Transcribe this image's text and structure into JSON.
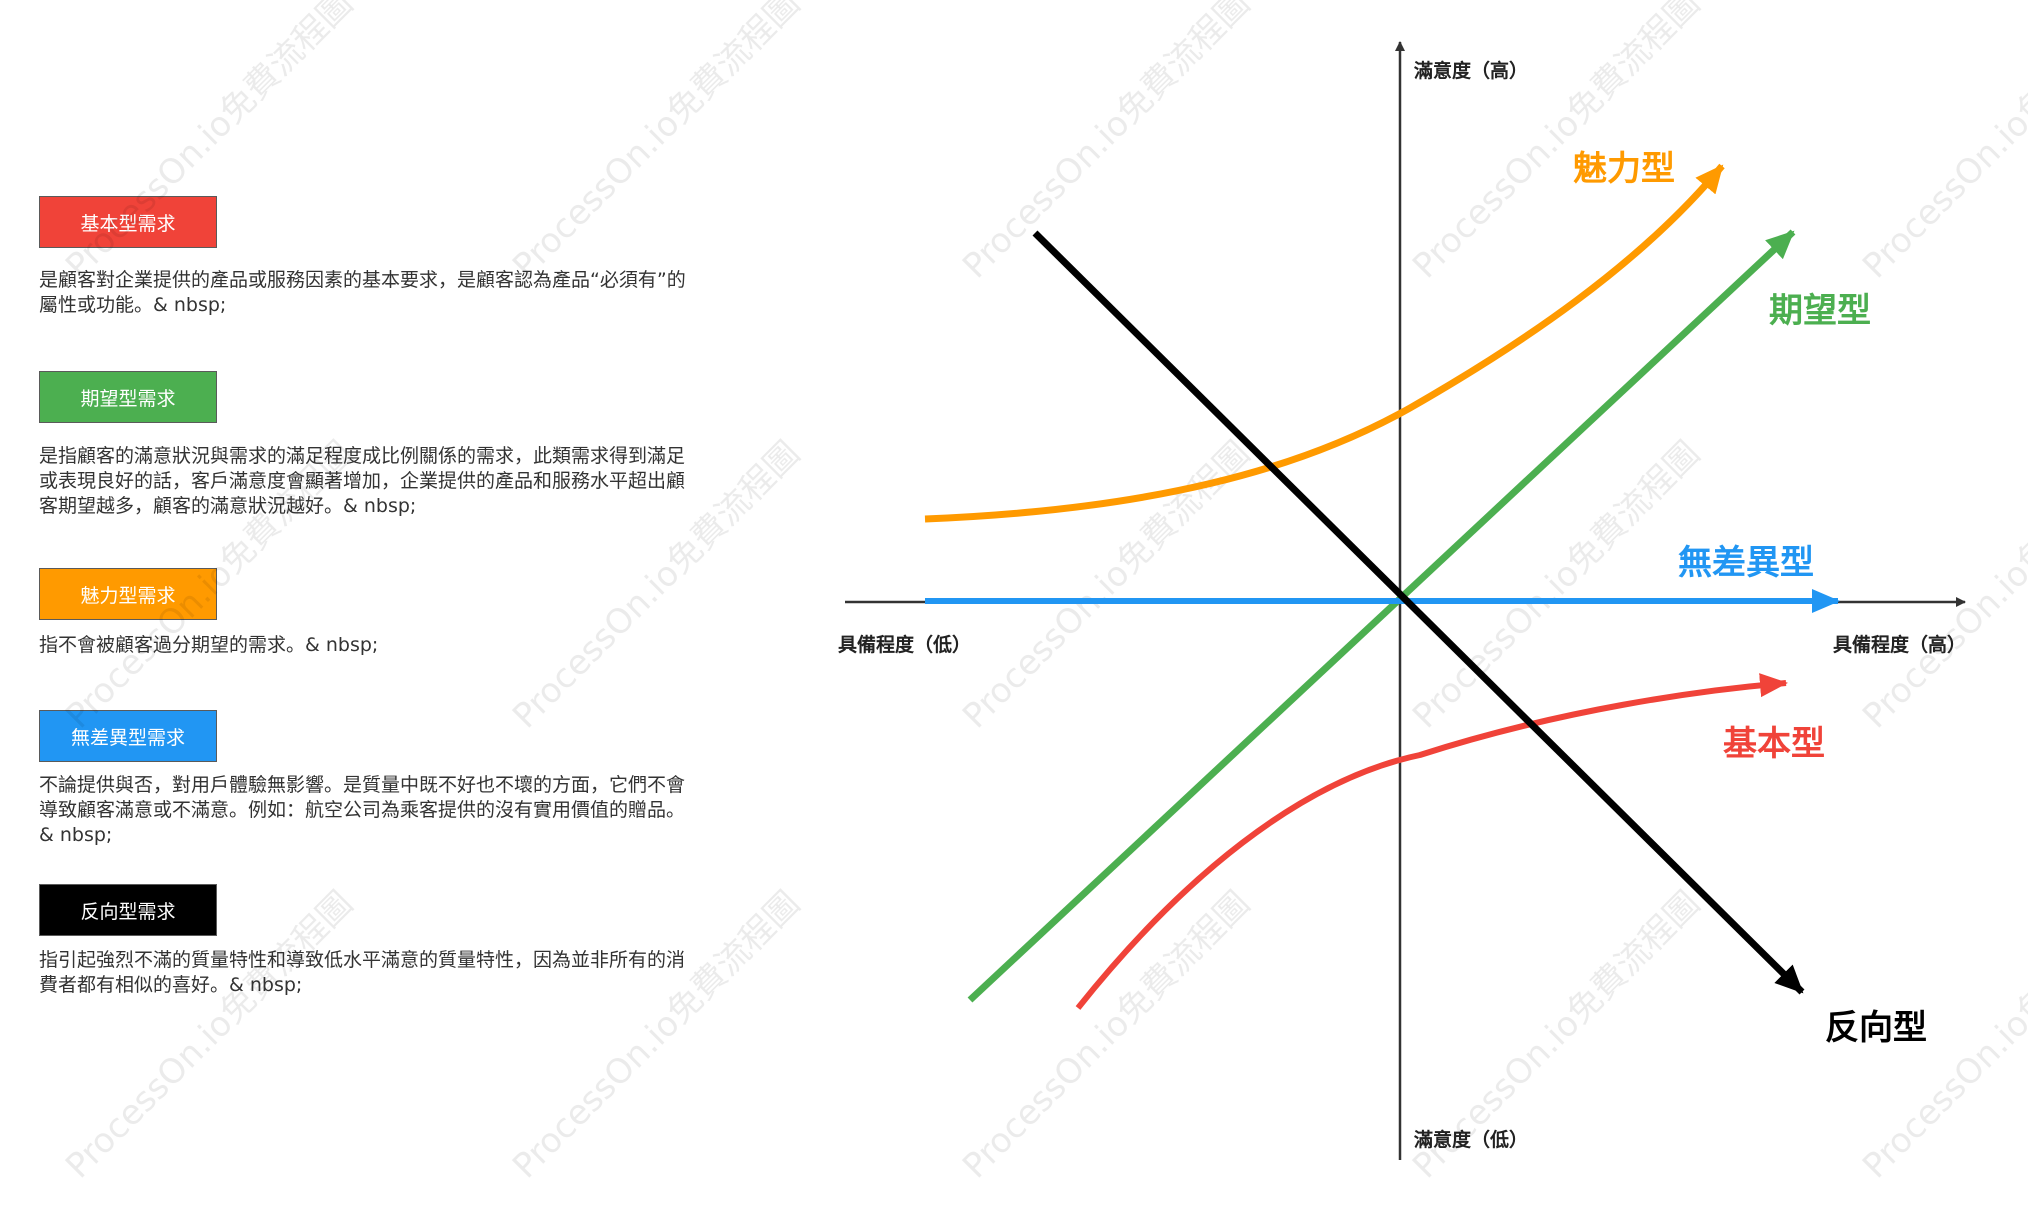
{
  "colors": {
    "basic": "#f04339",
    "performance": "#4caf50",
    "attractive": "#ff9a00",
    "indifferent": "#2196f3",
    "reverse": "#000000",
    "axis": "#333333"
  },
  "legend": [
    {
      "key": "basic",
      "label": "基本型需求",
      "description": "是顧客對企業提供的產品或服務因素的基本要求，是顧客認為產品“必須有”的屬性或功能。& nbsp;"
    },
    {
      "key": "performance",
      "label": "期望型需求",
      "description": "是指顧客的滿意狀況與需求的滿足程度成比例關係的需求，此類需求得到滿足或表現良好的話，客戶滿意度會顯著增加，企業提供的產品和服務水平超出顧客期望越多，顧客的滿意狀況越好。& nbsp;"
    },
    {
      "key": "attractive",
      "label": "魅力型需求",
      "description": "指不會被顧客過分期望的需求。& nbsp;"
    },
    {
      "key": "indifferent",
      "label": "無差異型需求",
      "description": "不論提供與否，對用戶體驗無影響。是質量中既不好也不壞的方面，它們不會導致顧客滿意或不滿意。例如：航空公司為乘客提供的沒有實用價值的贈品。& nbsp;"
    },
    {
      "key": "reverse",
      "label": "反向型需求",
      "description": "指引起強烈不滿的質量特性和導致低水平滿意的質量特性，因為並非所有的消費者都有相似的喜好。& nbsp;"
    }
  ],
  "axes": {
    "y_top": "滿意度（高）",
    "y_bottom": "滿意度（低）",
    "x_left": "具備程度（低）",
    "x_right": "具備程度（高）"
  },
  "curves": {
    "attractive": "魅力型",
    "performance": "期望型",
    "indifferent": "無差異型",
    "basic": "基本型",
    "reverse": "反向型"
  },
  "watermark": "ProcessOn.io免費流程圖"
}
